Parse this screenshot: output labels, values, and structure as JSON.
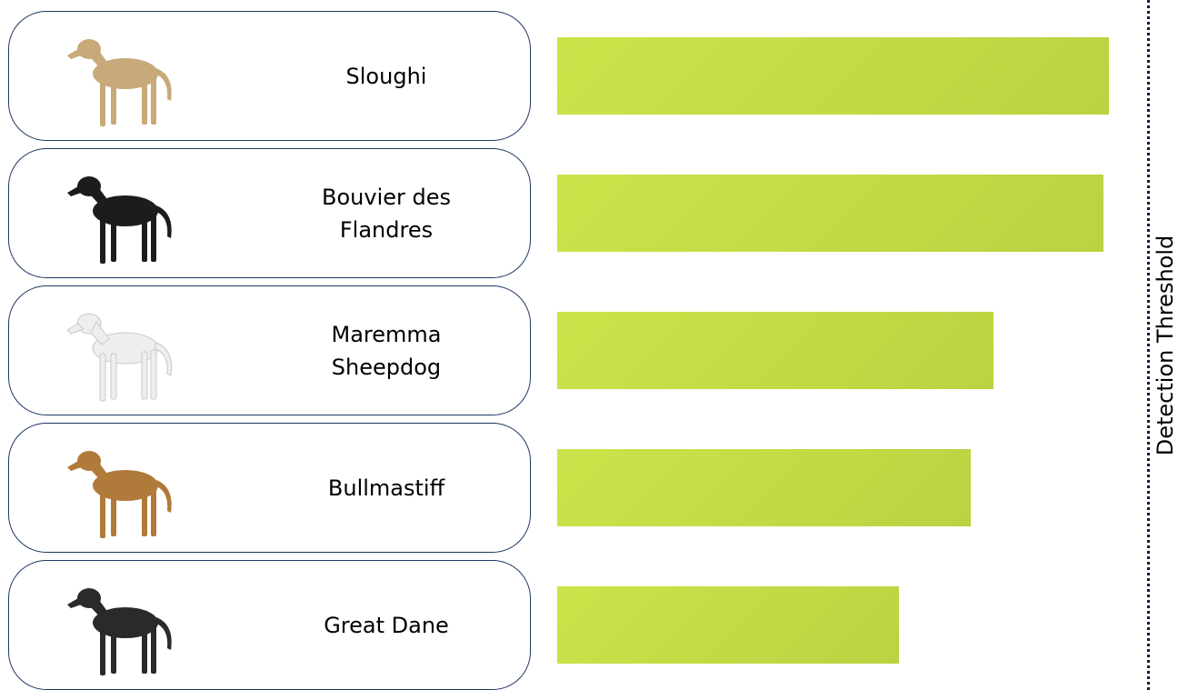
{
  "chart_data": {
    "type": "bar",
    "orientation": "horizontal",
    "categories": [
      "Sloughi",
      "Bouvier des\nFlandres",
      "Maremma\nSheepdog",
      "Bullmastiff",
      "Great Dane"
    ],
    "values": [
      1.0,
      0.99,
      0.79,
      0.75,
      0.62
    ],
    "xlim": [
      0,
      1
    ],
    "bar_color": "#c4dc47",
    "threshold_label": "Detection Threshold",
    "grid": false,
    "legend": "none"
  },
  "dogs": [
    {
      "label": "Sloughi",
      "icon": "sloughi-dog-image",
      "coat": "#c8a97a"
    },
    {
      "label": "Bouvier des\nFlandres",
      "icon": "bouvier-des-flandres-dog-image",
      "coat": "#1c1c1c"
    },
    {
      "label": "Maremma\nSheepdog",
      "icon": "maremma-sheepdog-dog-image",
      "coat": "#eeeeee"
    },
    {
      "label": "Bullmastiff",
      "icon": "bullmastiff-dog-image",
      "coat": "#b07a3a"
    },
    {
      "label": "Great Dane",
      "icon": "great-dane-dog-image",
      "coat": "#2a2a2a"
    }
  ],
  "colors": {
    "card_border": "#1f3864",
    "threshold_line": "#1b1b3a"
  }
}
